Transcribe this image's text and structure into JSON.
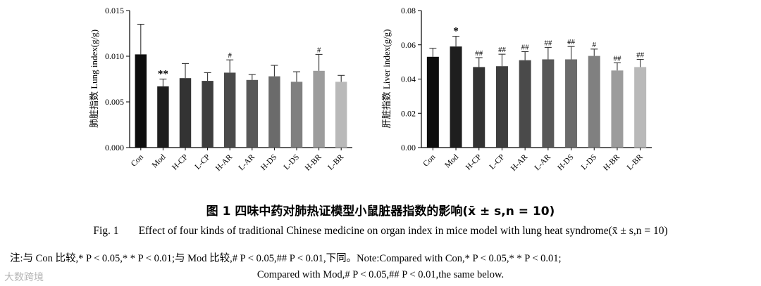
{
  "chart_data": [
    {
      "type": "bar",
      "ylabel": "肺脏指数 Lung index(g/g)",
      "categories": [
        "Con",
        "Mod",
        "H-CP",
        "L-CP",
        "H-AR",
        "L-AR",
        "H-DS",
        "L-DS",
        "H-BR",
        "L-BR"
      ],
      "values": [
        0.0102,
        0.0067,
        0.0076,
        0.0073,
        0.0082,
        0.0074,
        0.0078,
        0.0072,
        0.0084,
        0.0072
      ],
      "errors": [
        0.0033,
        0.0008,
        0.0016,
        0.0009,
        0.0014,
        0.0006,
        0.0012,
        0.0011,
        0.0018,
        0.0007
      ],
      "annotations": [
        "",
        "**",
        "",
        "",
        "#",
        "",
        "",
        "",
        "#",
        ""
      ],
      "colors": [
        "#0d0d0d",
        "#1e1e1e",
        "#333333",
        "#3e3e3e",
        "#4a4a4a",
        "#585858",
        "#6b6b6b",
        "#808080",
        "#9c9c9c",
        "#b9b9b9"
      ],
      "ylim": [
        0,
        0.015
      ],
      "yticks": [
        "0.000",
        "0.005",
        "0.010",
        "0.015"
      ],
      "ytick_values": [
        0,
        0.005,
        0.01,
        0.015
      ]
    },
    {
      "type": "bar",
      "ylabel": "肝脏指数 Liver index(g/g)",
      "categories": [
        "Con",
        "Mod",
        "H-CP",
        "L-CP",
        "H-AR",
        "L-AR",
        "H-DS",
        "L-DS",
        "H-BR",
        "L-BR"
      ],
      "values": [
        0.053,
        0.059,
        0.047,
        0.0475,
        0.051,
        0.0515,
        0.0515,
        0.0535,
        0.045,
        0.047
      ],
      "errors": [
        0.005,
        0.006,
        0.0055,
        0.007,
        0.005,
        0.007,
        0.0075,
        0.004,
        0.0045,
        0.0045
      ],
      "annotations": [
        "",
        "*",
        "##",
        "##",
        "##",
        "##",
        "##",
        "#",
        "##",
        "##"
      ],
      "colors": [
        "#0d0d0d",
        "#1e1e1e",
        "#333333",
        "#3e3e3e",
        "#4a4a4a",
        "#585858",
        "#6b6b6b",
        "#808080",
        "#9c9c9c",
        "#b9b9b9"
      ],
      "ylim": [
        0,
        0.08
      ],
      "yticks": [
        "0.00",
        "0.02",
        "0.04",
        "0.06",
        "0.08"
      ],
      "ytick_values": [
        0,
        0.02,
        0.04,
        0.06,
        0.08
      ]
    }
  ],
  "caption": {
    "cn_title": "图 1 四味中药对肺热证模型小鼠脏器指数的影响(x̄ ± s,n = 10)",
    "en_label": "Fig. 1",
    "en_text": "Effect of four kinds of traditional Chinese medicine on organ index in mice model with lung heat syndrome(x̄ ± s,n = 10)"
  },
  "notes": {
    "line1": "注:与 Con 比较,* P < 0.05,* * P < 0.01;与 Mod 比较,# P < 0.05,## P < 0.01,下同。Note:Compared with Con,* P < 0.05,* * P < 0.01;",
    "line2": "Compared with Mod,# P < 0.05,## P < 0.01,the same below."
  },
  "watermark": "大数跨境"
}
